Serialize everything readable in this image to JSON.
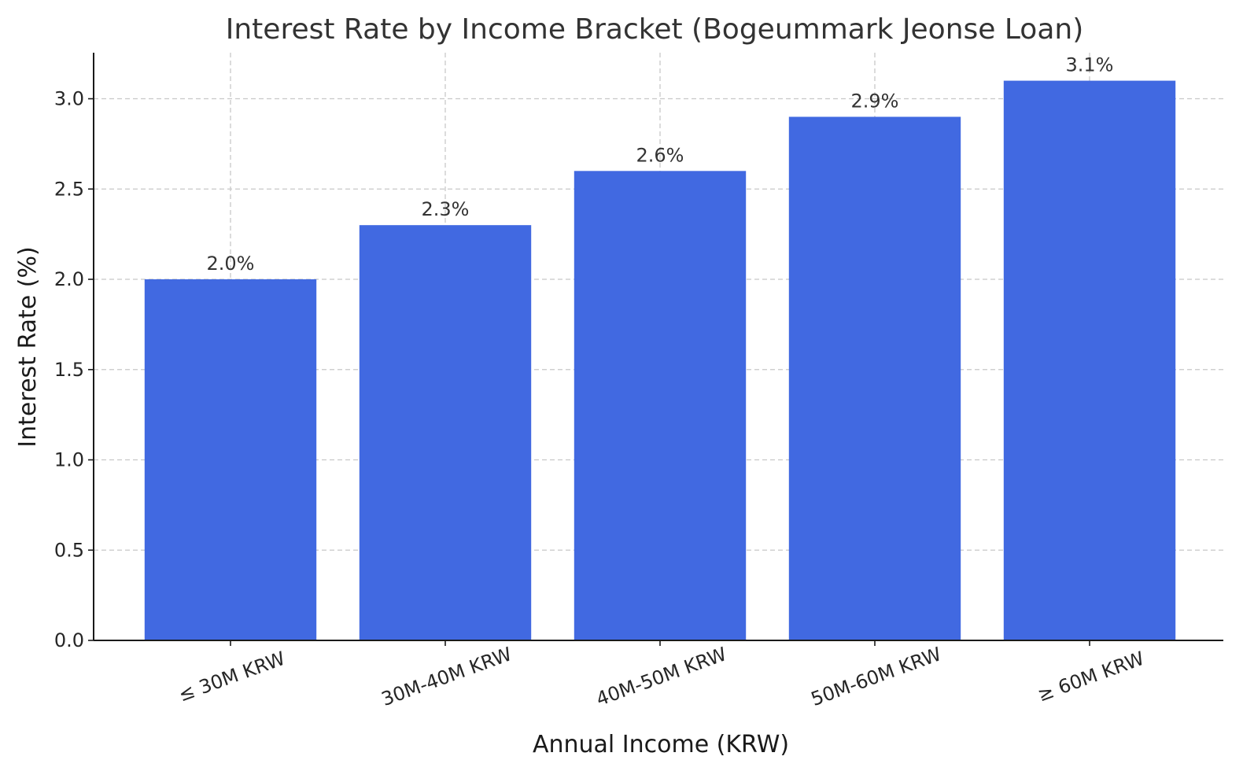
{
  "chart_data": {
    "type": "bar",
    "title": "Interest Rate by Income Bracket (Bogeummark Jeonse Loan)",
    "xlabel": "Annual Income (KRW)",
    "ylabel": "Interest Rate (%)",
    "categories": [
      "≤ 30M KRW",
      "30M-40M KRW",
      "40M-50M KRW",
      "50M-60M KRW",
      "≥ 60M KRW"
    ],
    "values": [
      2.0,
      2.3,
      2.6,
      2.9,
      3.1
    ],
    "data_labels": [
      "2.0%",
      "2.3%",
      "2.6%",
      "2.9%",
      "3.1%"
    ],
    "ylim": [
      0,
      3.255
    ],
    "yticks": [
      0.0,
      0.5,
      1.0,
      1.5,
      2.0,
      2.5,
      3.0
    ],
    "ytick_labels": [
      "0.0",
      "0.5",
      "1.0",
      "1.5",
      "2.0",
      "2.5",
      "3.0"
    ],
    "grid": true,
    "bar_color": "#4169e1"
  }
}
